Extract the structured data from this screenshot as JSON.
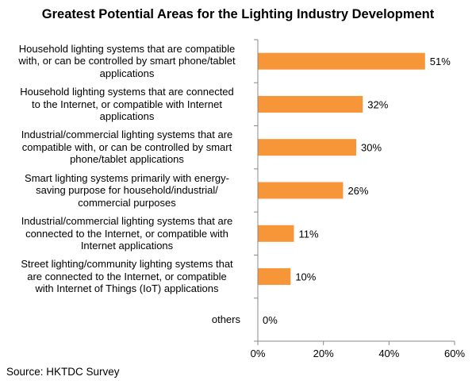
{
  "chart_data": {
    "type": "bar",
    "orientation": "horizontal",
    "title": "Greatest Potential Areas for the Lighting Industry Development",
    "categories": [
      "Household lighting systems that are compatible with, or can be controlled by smart phone/tablet applications",
      "Household lighting systems that are connected to the Internet, or compatible with Internet applications",
      "Industrial/commercial lighting systems that are compatible with, or can be controlled by smart phone/tablet applications",
      "Smart lighting systems primarily with energy-saving purpose for household/industrial/ commercial purposes",
      "Industrial/commercial lighting systems that are connected to the Internet, or compatible with Internet applications",
      "Street lighting/community lighting systems that are connected to the Internet, or compatible with Internet of Things (IoT) applications",
      "others"
    ],
    "category_lines": [
      [
        "Household lighting systems that are compatible",
        "with, or can be controlled by smart phone/tablet",
        "applications"
      ],
      [
        "Household lighting systems that are connected",
        "to the Internet, or compatible with Internet",
        "applications"
      ],
      [
        "Industrial/commercial lighting systems that are",
        "compatible with, or can be controlled by smart",
        "phone/tablet applications"
      ],
      [
        "Smart lighting systems primarily with energy-",
        "saving purpose for household/industrial/",
        "commercial purposes"
      ],
      [
        "Industrial/commercial lighting systems that are",
        "connected to the Internet, or compatible with",
        "Internet applications"
      ],
      [
        "Street lighting/community lighting systems that",
        "are connected to the Internet, or compatible",
        "with Internet of Things (IoT) applications"
      ],
      [
        "others"
      ]
    ],
    "values": [
      51,
      32,
      30,
      26,
      11,
      10,
      0
    ],
    "value_labels": [
      "51%",
      "32%",
      "30%",
      "26%",
      "11%",
      "10%",
      "0%"
    ],
    "xlim": [
      0,
      60
    ],
    "x_ticks": [
      0,
      20,
      40,
      60
    ],
    "x_tick_labels": [
      "0%",
      "20%",
      "40%",
      "60%"
    ],
    "grid": false,
    "bar_color": "#F79539",
    "axis_color": "#888888"
  },
  "source": "Source: HKTDC Survey"
}
